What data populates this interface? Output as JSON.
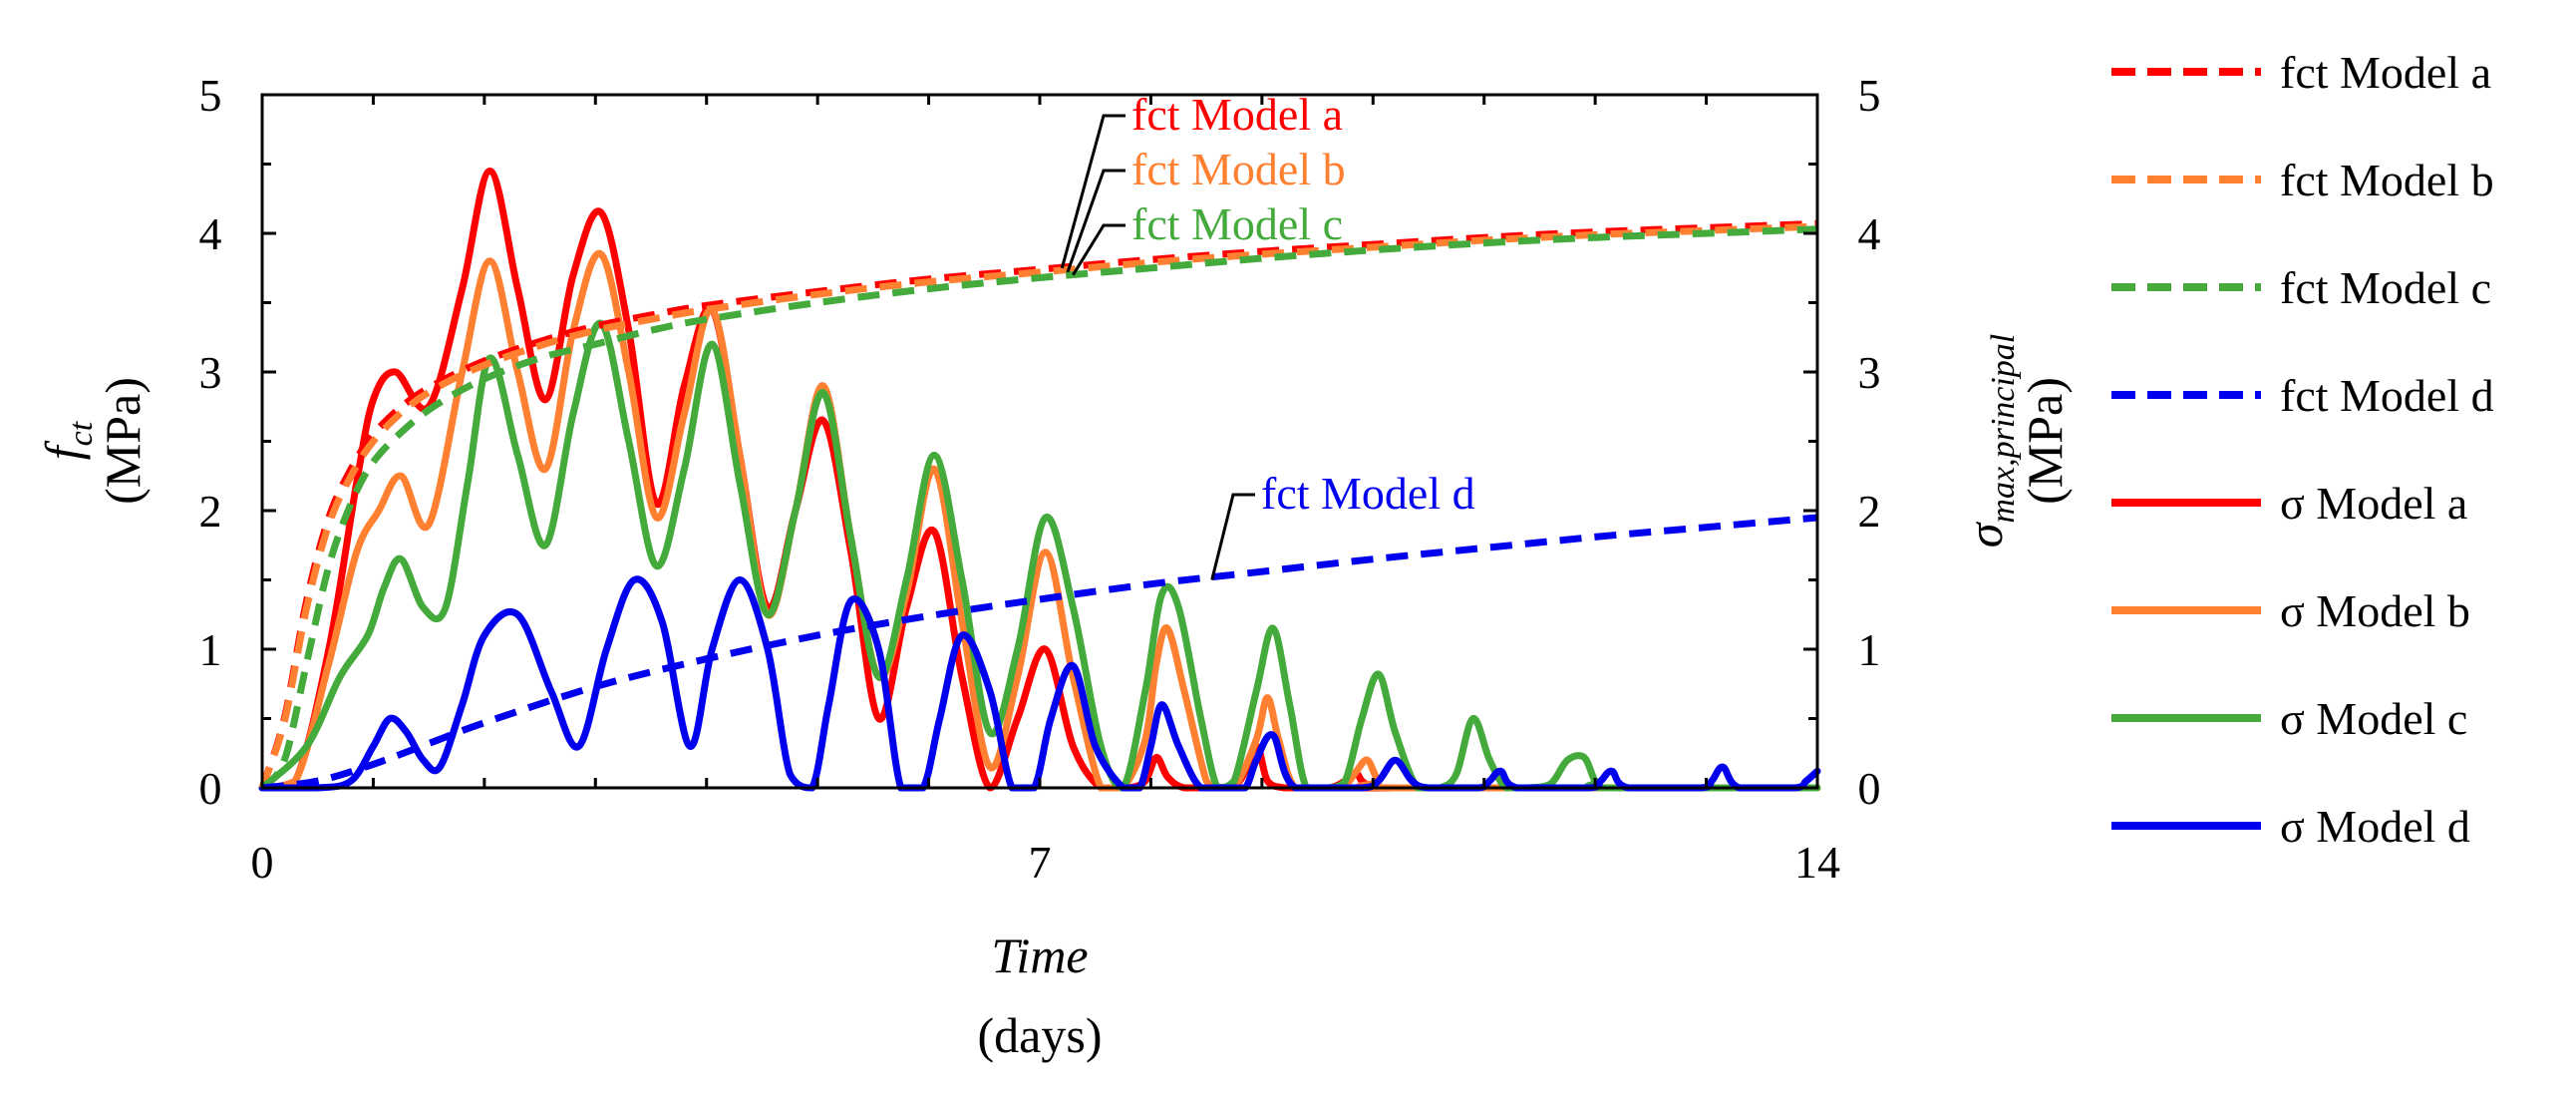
{
  "chart_data": {
    "type": "line",
    "xlabel": "Time",
    "xlabel_unit": "(days)",
    "ylabel_left_symbol": "f",
    "ylabel_left_subscript": "ct",
    "ylabel_left_unit": "(MPa)",
    "ylabel_right_symbol": "σ",
    "ylabel_right_subscript": "max,principal",
    "ylabel_right_unit": "(MPa)",
    "xlim": [
      0,
      14
    ],
    "ylim": [
      0,
      5
    ],
    "xticks": [
      0,
      7,
      14
    ],
    "yticks": [
      0,
      1,
      2,
      3,
      4,
      5
    ],
    "legend_position": "right",
    "series": [
      {
        "name": "fct Model a",
        "color": "#ff0000",
        "style": "dashed",
        "kind": "fct",
        "x": [
          0,
          0.2,
          0.4,
          0.6,
          0.8,
          1.0,
          1.3,
          1.6,
          2.0,
          2.5,
          3.0,
          3.5,
          4.0,
          5.0,
          6.0,
          7.0,
          8.0,
          9.0,
          10.0,
          11.0,
          12.0,
          13.0,
          14.0
        ],
        "y": [
          0,
          0.5,
          1.35,
          1.95,
          2.3,
          2.55,
          2.78,
          2.93,
          3.08,
          3.22,
          3.33,
          3.41,
          3.48,
          3.58,
          3.67,
          3.74,
          3.81,
          3.87,
          3.92,
          3.97,
          4.01,
          4.04,
          4.07
        ]
      },
      {
        "name": "fct Model b",
        "color": "#ff8030",
        "style": "dashed",
        "kind": "fct",
        "x": [
          0,
          0.2,
          0.4,
          0.6,
          0.8,
          1.0,
          1.3,
          1.6,
          2.0,
          2.5,
          3.0,
          3.5,
          4.0,
          5.0,
          6.0,
          7.0,
          8.0,
          9.0,
          10.0,
          11.0,
          12.0,
          13.0,
          14.0
        ],
        "y": [
          0,
          0.48,
          1.3,
          1.9,
          2.25,
          2.5,
          2.74,
          2.9,
          3.05,
          3.19,
          3.3,
          3.38,
          3.45,
          3.56,
          3.65,
          3.72,
          3.79,
          3.85,
          3.9,
          3.95,
          3.99,
          4.02,
          4.05
        ]
      },
      {
        "name": "fct Model c",
        "color": "#44aa3c",
        "style": "dashed",
        "kind": "fct",
        "x": [
          0,
          0.2,
          0.4,
          0.6,
          0.8,
          1.0,
          1.3,
          1.6,
          2.0,
          2.5,
          3.0,
          3.5,
          4.0,
          5.0,
          6.0,
          7.0,
          8.0,
          9.0,
          10.0,
          11.0,
          12.0,
          13.0,
          14.0
        ],
        "y": [
          0,
          0.2,
          0.9,
          1.6,
          2.05,
          2.35,
          2.6,
          2.78,
          2.95,
          3.1,
          3.2,
          3.3,
          3.38,
          3.5,
          3.6,
          3.68,
          3.75,
          3.82,
          3.88,
          3.93,
          3.97,
          4.0,
          4.03
        ]
      },
      {
        "name": "fct Model d",
        "color": "#0000ee",
        "style": "dashed",
        "kind": "fct",
        "x": [
          0,
          0.5,
          1.0,
          1.5,
          2.0,
          3.0,
          4.0,
          5.0,
          6.0,
          7.0,
          8.0,
          9.0,
          10.0,
          11.0,
          12.0,
          13.0,
          14.0
        ],
        "y": [
          0,
          0.05,
          0.17,
          0.32,
          0.47,
          0.73,
          0.93,
          1.1,
          1.24,
          1.36,
          1.47,
          1.56,
          1.65,
          1.73,
          1.81,
          1.88,
          1.95
        ]
      },
      {
        "name": "σ Model a",
        "color": "#ff0000",
        "style": "solid",
        "kind": "sigma",
        "x": [
          0,
          0.3,
          0.6,
          0.85,
          1.0,
          1.2,
          1.5,
          1.8,
          2.05,
          2.3,
          2.55,
          2.8,
          3.05,
          3.3,
          3.55,
          3.8,
          4.05,
          4.3,
          4.55,
          4.8,
          5.05,
          5.3,
          5.55,
          5.8,
          6.05,
          6.3,
          6.55,
          6.8,
          7.05,
          7.3,
          7.55,
          7.8,
          7.95,
          8.05,
          8.15,
          8.3,
          8.6,
          8.8,
          8.95,
          9.05,
          9.2,
          9.3,
          9.6,
          9.75,
          9.85,
          9.9,
          10.0,
          10.1,
          10.2,
          14.0
        ],
        "y": [
          0,
          0.05,
          1.0,
          2.2,
          2.8,
          3.0,
          2.75,
          3.6,
          4.45,
          3.6,
          2.8,
          3.7,
          4.15,
          3.3,
          2.05,
          2.9,
          3.45,
          2.4,
          1.3,
          2.0,
          2.65,
          1.7,
          0.5,
          1.3,
          1.85,
          0.8,
          0,
          0.5,
          1.0,
          0.3,
          0,
          0,
          0.05,
          0.22,
          0.08,
          0,
          0,
          0.05,
          0.3,
          0.05,
          0,
          0,
          0,
          0.05,
          0.1,
          0.05,
          0,
          0,
          0,
          0
        ]
      },
      {
        "name": "σ Model b",
        "color": "#ff8030",
        "style": "solid",
        "kind": "sigma",
        "x": [
          0,
          0.3,
          0.6,
          0.85,
          1.05,
          1.25,
          1.5,
          1.8,
          2.05,
          2.3,
          2.55,
          2.8,
          3.05,
          3.3,
          3.55,
          3.8,
          4.05,
          4.3,
          4.55,
          4.8,
          5.05,
          5.3,
          5.55,
          5.8,
          6.05,
          6.3,
          6.55,
          6.8,
          7.05,
          7.3,
          7.55,
          7.75,
          7.95,
          8.05,
          8.15,
          8.3,
          8.5,
          8.6,
          8.75,
          8.95,
          9.05,
          9.15,
          9.3,
          9.6,
          9.75,
          9.85,
          9.95,
          10.05,
          10.2,
          14.0
        ],
        "y": [
          0,
          0.05,
          0.9,
          1.7,
          2.0,
          2.25,
          1.9,
          3.0,
          3.8,
          3.0,
          2.3,
          3.3,
          3.85,
          3.0,
          1.95,
          2.7,
          3.45,
          2.4,
          1.25,
          2.0,
          2.9,
          1.8,
          0.8,
          1.4,
          2.3,
          1.2,
          0.15,
          0.8,
          1.7,
          0.8,
          0,
          0,
          0.35,
          0.9,
          1.15,
          0.7,
          0.05,
          0,
          0,
          0.35,
          0.65,
          0.35,
          0,
          0,
          0.02,
          0.12,
          0.2,
          0.05,
          0,
          0
        ]
      },
      {
        "name": "σ Model c",
        "color": "#44aa3c",
        "style": "solid",
        "kind": "sigma",
        "x": [
          0,
          0.4,
          0.7,
          0.95,
          1.1,
          1.25,
          1.45,
          1.65,
          1.85,
          2.05,
          2.3,
          2.55,
          2.8,
          3.05,
          3.3,
          3.55,
          3.8,
          4.05,
          4.3,
          4.55,
          4.8,
          5.05,
          5.3,
          5.55,
          5.8,
          6.05,
          6.3,
          6.55,
          6.8,
          7.05,
          7.3,
          7.55,
          7.75,
          7.95,
          8.1,
          8.25,
          8.45,
          8.6,
          8.75,
          8.95,
          9.1,
          9.25,
          9.4,
          9.6,
          9.75,
          9.9,
          10.05,
          10.2,
          10.4,
          10.6,
          10.75,
          10.9,
          11.05,
          11.2,
          11.4,
          11.6,
          11.75,
          11.9,
          12.0,
          12.1,
          14.0
        ],
        "y": [
          0,
          0.3,
          0.8,
          1.1,
          1.45,
          1.65,
          1.3,
          1.3,
          2.2,
          3.1,
          2.4,
          1.75,
          2.7,
          3.35,
          2.5,
          1.6,
          2.3,
          3.2,
          2.2,
          1.25,
          2.0,
          2.85,
          1.8,
          0.8,
          1.5,
          2.4,
          1.5,
          0.4,
          1.0,
          1.95,
          1.3,
          0.3,
          0,
          0.7,
          1.4,
          1.3,
          0.5,
          0,
          0.05,
          0.7,
          1.15,
          0.6,
          0,
          0,
          0.05,
          0.5,
          0.82,
          0.4,
          0,
          0,
          0.1,
          0.5,
          0.2,
          0,
          0,
          0.03,
          0.2,
          0.22,
          0.05,
          0,
          0
        ]
      },
      {
        "name": "σ Model d",
        "color": "#0000ee",
        "style": "solid",
        "kind": "sigma",
        "x": [
          0,
          0.5,
          0.8,
          1.0,
          1.15,
          1.3,
          1.45,
          1.6,
          1.8,
          2.0,
          2.3,
          2.6,
          2.85,
          3.1,
          3.35,
          3.6,
          3.85,
          4.05,
          4.3,
          4.55,
          4.75,
          4.95,
          5.1,
          5.3,
          5.55,
          5.75,
          5.95,
          6.1,
          6.3,
          6.55,
          6.75,
          6.95,
          7.1,
          7.3,
          7.5,
          7.75,
          7.9,
          8.0,
          8.1,
          8.25,
          8.45,
          8.7,
          8.85,
          8.95,
          9.1,
          9.3,
          9.9,
          10.05,
          10.2,
          10.35,
          10.5,
          10.95,
          11.05,
          11.15,
          11.3,
          11.95,
          12.05,
          12.15,
          12.3,
          12.95,
          13.05,
          13.15,
          13.3,
          13.8,
          13.9,
          14.0
        ],
        "y": [
          0,
          0,
          0.05,
          0.3,
          0.5,
          0.4,
          0.2,
          0.15,
          0.6,
          1.1,
          1.25,
          0.7,
          0.3,
          1.0,
          1.5,
          1.2,
          0.3,
          1.0,
          1.5,
          1.0,
          0.1,
          0,
          0.6,
          1.35,
          1.0,
          0,
          0,
          0.5,
          1.1,
          0.7,
          0,
          0,
          0.5,
          0.88,
          0.3,
          0,
          0,
          0.3,
          0.6,
          0.3,
          0,
          0,
          0,
          0.2,
          0.38,
          0,
          0,
          0.05,
          0.2,
          0.05,
          0,
          0,
          0.05,
          0.12,
          0,
          0,
          0.05,
          0.12,
          0,
          0,
          0.05,
          0.15,
          0,
          0,
          0.05,
          0.12
        ]
      }
    ],
    "annotations": [
      {
        "text": "fct Model a",
        "color": "#ff0000",
        "target_x": 7.2,
        "target_y": 3.75
      },
      {
        "text": "fct Model b",
        "color": "#ff8030",
        "target_x": 7.25,
        "target_y": 3.72
      },
      {
        "text": "fct Model c",
        "color": "#44aa3c",
        "target_x": 7.3,
        "target_y": 3.7
      },
      {
        "text": "fct Model d",
        "color": "#0000ee",
        "target_x": 8.55,
        "target_y": 1.5
      }
    ]
  }
}
